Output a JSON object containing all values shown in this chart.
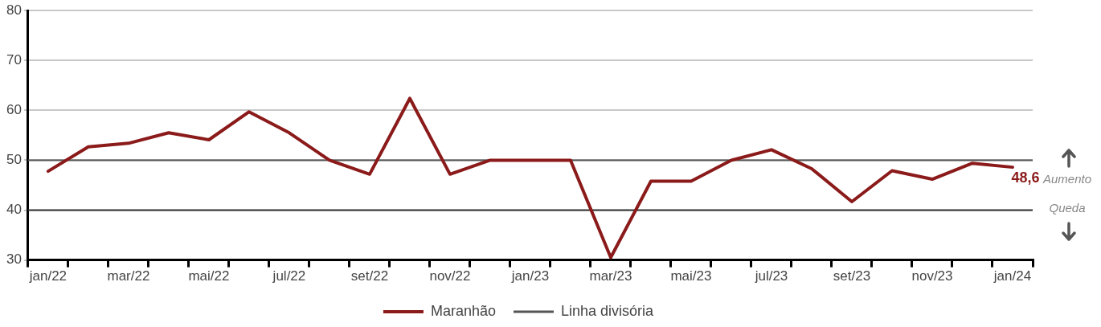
{
  "chart_data": {
    "type": "line",
    "categories": [
      "jan/22",
      null,
      "mar/22",
      null,
      "mai/22",
      null,
      "jul/22",
      null,
      "set/22",
      null,
      "nov/22",
      null,
      "jan/23",
      null,
      "mar/23",
      null,
      "mai/23",
      null,
      "jul/23",
      null,
      "set/23",
      null,
      "nov/23",
      null,
      "jan/24"
    ],
    "series": [
      {
        "name": "Maranhão",
        "color": "#8b1a1a",
        "values": [
          47.8,
          52.7,
          53.4,
          55.5,
          54.1,
          59.7,
          55.5,
          50,
          47.2,
          62.4,
          47.2,
          50,
          50,
          50,
          30.5,
          45.8,
          45.8,
          50,
          52.1,
          48.3,
          41.7,
          47.9,
          46.2,
          49.4,
          48.6
        ],
        "value_labels": [
          null,
          null,
          null,
          null,
          null,
          null,
          null,
          null,
          null,
          null,
          null,
          null,
          null,
          null,
          null,
          null,
          null,
          null,
          null,
          null,
          null,
          null,
          null,
          null,
          "48,6"
        ]
      }
    ],
    "ylim": [
      30,
      80
    ],
    "yticks": [
      30,
      40,
      50,
      60,
      70,
      80
    ],
    "grid": "y",
    "legend": "bottom",
    "marker": "none",
    "line_style": "solid",
    "ref_lines": [
      {
        "axis": "y",
        "value": 50,
        "label": "Linha divisória",
        "color": "#555555"
      },
      {
        "axis": "y",
        "value": 40,
        "color": "#333333"
      }
    ],
    "annotations": [
      "Aumento",
      "Queda"
    ]
  }
}
